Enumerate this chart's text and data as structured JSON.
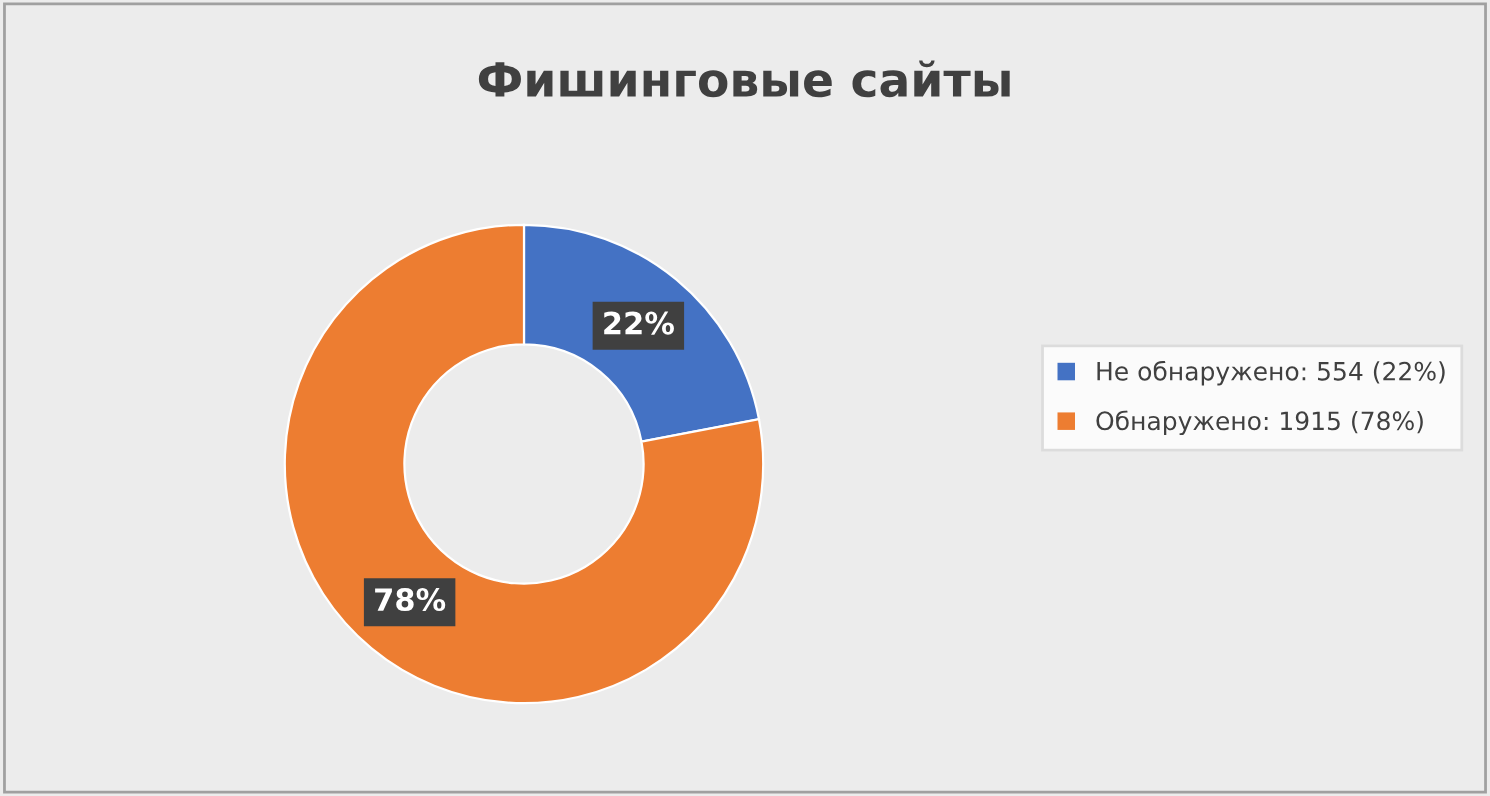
{
  "chart_data": {
    "type": "donut",
    "title": "Фишинговые сайты",
    "categories": [
      "Не обнаружено: 554 (22%)",
      "Обнаружено: 1915 (78%)"
    ],
    "values": [
      22,
      78
    ],
    "colors": [
      "#4472c4",
      "#ed7d31"
    ],
    "value_labels": [
      "22%",
      "78%"
    ],
    "legend": "right"
  }
}
